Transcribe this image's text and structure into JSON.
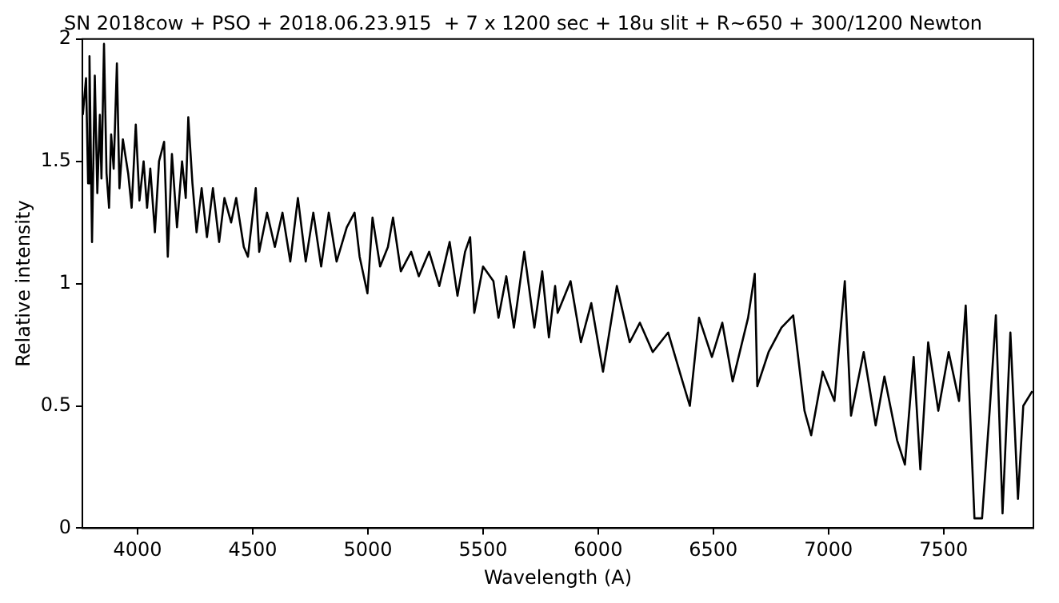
{
  "chart_data": {
    "type": "line",
    "title": "SN 2018cow + PSO + 2018.06.23.915  + 7 x 1200 sec + 18u slit + R~650 + 300/1200 Newton",
    "xlabel": "Wavelength (A)",
    "ylabel": "Relative intensity",
    "x": [
      3762,
      3776,
      3785,
      3791,
      3802,
      3814,
      3825,
      3836,
      3843,
      3854,
      3865,
      3876,
      3885,
      3896,
      3910,
      3921,
      3936,
      3959,
      3974,
      3992,
      4008,
      4026,
      4041,
      4055,
      4075,
      4093,
      4115,
      4131,
      4149,
      4171,
      4193,
      4209,
      4220,
      4238,
      4256,
      4278,
      4301,
      4327,
      4354,
      4377,
      4406,
      4428,
      4461,
      4479,
      4513,
      4528,
      4562,
      4596,
      4629,
      4663,
      4696,
      4730,
      4763,
      4797,
      4830,
      4864,
      4908,
      4942,
      4964,
      4998,
      5020,
      5053,
      5087,
      5109,
      5143,
      5188,
      5221,
      5266,
      5310,
      5355,
      5389,
      5422,
      5444,
      5462,
      5500,
      5545,
      5567,
      5601,
      5634,
      5679,
      5723,
      5757,
      5786,
      5813,
      5824,
      5880,
      5925,
      5970,
      6021,
      6081,
      6137,
      6181,
      6237,
      6304,
      6360,
      6398,
      6438,
      6494,
      6539,
      6584,
      6651,
      6680,
      6691,
      6740,
      6796,
      6847,
      6896,
      6925,
      6975,
      7026,
      7071,
      7098,
      7153,
      7205,
      7243,
      7298,
      7332,
      7370,
      7399,
      7433,
      7477,
      7522,
      7567,
      7596,
      7634,
      7667,
      7700,
      7727,
      7756,
      7790,
      7823,
      7846,
      7885
    ],
    "series": [
      {
        "color": "#000000",
        "values": [
          1.69,
          1.84,
          1.41,
          1.93,
          1.17,
          1.85,
          1.37,
          1.69,
          1.43,
          1.98,
          1.45,
          1.31,
          1.61,
          1.47,
          1.9,
          1.39,
          1.59,
          1.45,
          1.31,
          1.65,
          1.34,
          1.5,
          1.31,
          1.47,
          1.21,
          1.5,
          1.58,
          1.11,
          1.53,
          1.23,
          1.5,
          1.35,
          1.68,
          1.41,
          1.21,
          1.39,
          1.19,
          1.39,
          1.17,
          1.35,
          1.25,
          1.35,
          1.15,
          1.11,
          1.39,
          1.13,
          1.29,
          1.15,
          1.29,
          1.09,
          1.35,
          1.09,
          1.29,
          1.07,
          1.29,
          1.09,
          1.23,
          1.29,
          1.11,
          0.96,
          1.27,
          1.07,
          1.15,
          1.27,
          1.05,
          1.13,
          1.03,
          1.13,
          0.99,
          1.17,
          0.95,
          1.13,
          1.19,
          0.88,
          1.07,
          1.01,
          0.86,
          1.03,
          0.82,
          1.13,
          0.82,
          1.05,
          0.78,
          0.99,
          0.88,
          1.01,
          0.76,
          0.92,
          0.64,
          0.99,
          0.76,
          0.84,
          0.72,
          0.8,
          0.62,
          0.5,
          0.86,
          0.7,
          0.84,
          0.6,
          0.86,
          1.04,
          0.58,
          0.72,
          0.82,
          0.87,
          0.48,
          0.38,
          0.64,
          0.52,
          1.01,
          0.46,
          0.72,
          0.42,
          0.62,
          0.36,
          0.26,
          0.7,
          0.24,
          0.76,
          0.48,
          0.72,
          0.52,
          0.91,
          0.04,
          0.04,
          0.48,
          0.87,
          0.06,
          0.8,
          0.12,
          0.5,
          0.56
        ]
      }
    ],
    "xlim": [
      3760,
      7890
    ],
    "xticks": [
      4000,
      4500,
      5000,
      5500,
      6000,
      6500,
      7000,
      7500
    ],
    "ylim": [
      0,
      2
    ],
    "yticks": [
      0,
      0.5,
      1,
      1.5,
      2
    ],
    "grid": false,
    "legend": false,
    "marker": "none",
    "line_style": "solid"
  }
}
